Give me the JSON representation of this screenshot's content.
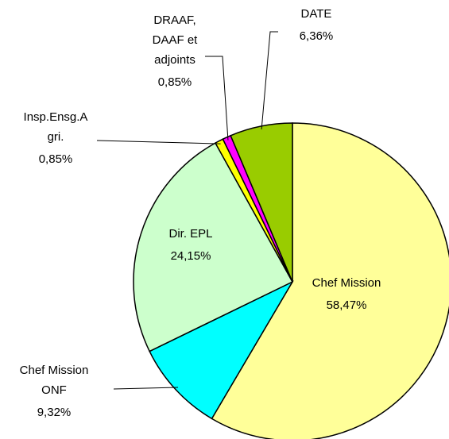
{
  "chart_data": {
    "type": "pie",
    "categories": [
      [
        "Chef Mission"
      ],
      [
        "Chef Mission",
        "ONF"
      ],
      [
        "Dir. EPL"
      ],
      [
        "Insp.Ensg.A",
        "gri."
      ],
      [
        "DRAAF,",
        "DAAF et",
        "adjoints"
      ],
      [
        "DATE"
      ]
    ],
    "values": [
      58.47,
      9.32,
      24.15,
      0.85,
      0.85,
      6.36
    ],
    "value_labels": [
      "58,47%",
      "9,32%",
      "24,15%",
      "0,85%",
      "0,85%",
      "6,36%"
    ],
    "colors": [
      "#ffff99",
      "#00ffff",
      "#ccffcc",
      "#ffff00",
      "#ff00ff",
      "#99cc00"
    ]
  }
}
